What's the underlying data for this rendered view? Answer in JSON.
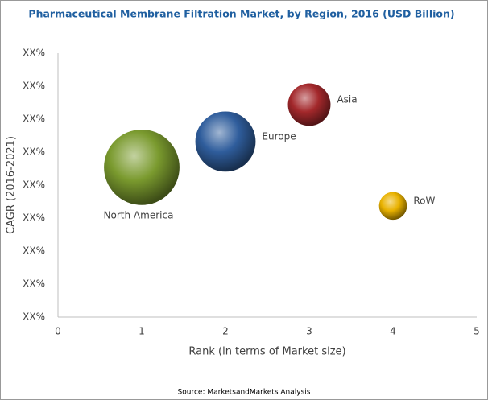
{
  "chart_data": {
    "type": "bubble",
    "title": "Pharmaceutical Membrane Filtration Market, by Region, 2016 (USD Billion)",
    "x_label": "Rank (in terms of Market size)",
    "y_label": "CAGR (2016-2021)",
    "source": "Source: MarketsandMarkets Analysis",
    "xlim": [
      0,
      5
    ],
    "xticks": [
      0,
      1,
      2,
      3,
      4,
      5
    ],
    "ylim": [
      0,
      8
    ],
    "yticks": [
      {
        "value": 0,
        "label": "XX%"
      },
      {
        "value": 1,
        "label": "XX%"
      },
      {
        "value": 2,
        "label": "XX%"
      },
      {
        "value": 3,
        "label": "XX%"
      },
      {
        "value": 4,
        "label": "XX%"
      },
      {
        "value": 5,
        "label": "XX%"
      },
      {
        "value": 6,
        "label": "XX%"
      },
      {
        "value": 7,
        "label": "XX%"
      },
      {
        "value": 8,
        "label": "XX%"
      }
    ],
    "series": [
      {
        "name": "North America",
        "color": "#7a9a2e",
        "x": [
          1
        ],
        "values": [
          4.54
        ],
        "sizes": [
          22
        ]
      },
      {
        "name": "Europe",
        "color": "#2f5d9c",
        "x": [
          2
        ],
        "values": [
          5.32
        ],
        "sizes": [
          14
        ]
      },
      {
        "name": "Asia",
        "color": "#a3282b",
        "x": [
          3
        ],
        "values": [
          6.44
        ],
        "sizes": [
          7
        ]
      },
      {
        "name": "RoW",
        "color": "#e9b200",
        "x": [
          4
        ],
        "values": [
          3.37
        ],
        "sizes": [
          3
        ]
      }
    ]
  }
}
